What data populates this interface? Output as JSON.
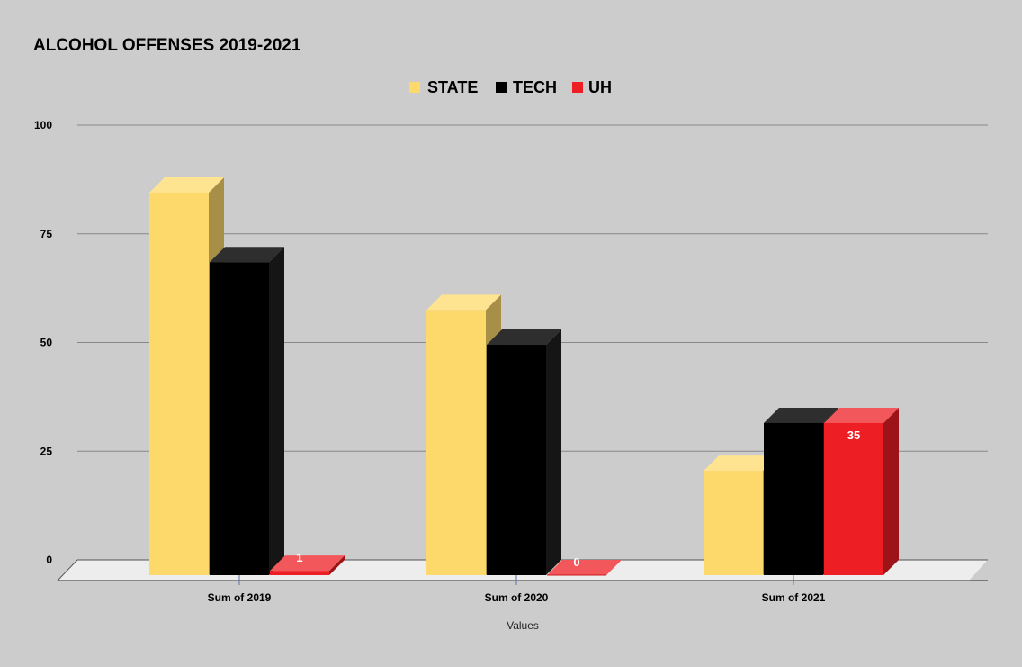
{
  "chart_data": {
    "type": "bar",
    "title": "ALCOHOL OFFENSES 2019-2021",
    "xlabel": "Values",
    "ylabel": "",
    "categories": [
      "Sum of 2019",
      "Sum of 2020",
      "Sum of 2021"
    ],
    "series": [
      {
        "name": "STATE",
        "values": [
          88,
          61,
          24
        ],
        "color": "#fdd96b"
      },
      {
        "name": "TECH",
        "values": [
          72,
          53,
          35
        ],
        "color": "#000000"
      },
      {
        "name": "UH",
        "values": [
          1,
          0,
          35
        ],
        "color": "#ee1f24"
      }
    ],
    "data_labels": {
      "UH": [
        "1",
        "0",
        "35"
      ]
    },
    "ylim": [
      0,
      100
    ],
    "yticks": [
      "0",
      "25",
      "50",
      "75",
      "100"
    ],
    "grid": true,
    "legend_position": "top-center",
    "style": "3d-columns"
  }
}
